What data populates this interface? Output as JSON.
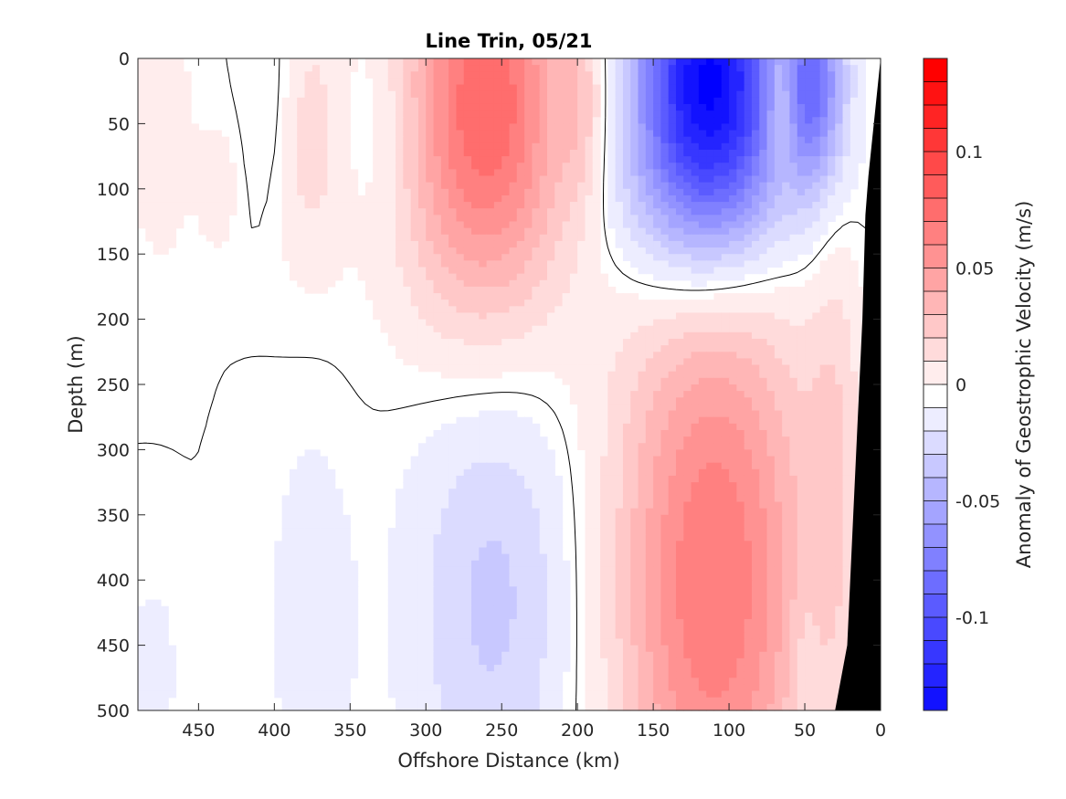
{
  "chart_data": {
    "type": "heatmap",
    "title": "Line Trin, 05/21",
    "xlabel": "Offshore Distance (km)",
    "ylabel": "Depth (m)",
    "colorbar_label": "Anomaly of Geostrophic Velocity (m/s)",
    "xlim": [
      490,
      0
    ],
    "ylim": [
      0,
      500
    ],
    "x_reversed": true,
    "y_reversed": true,
    "x_ticks": [
      450,
      400,
      350,
      300,
      250,
      200,
      150,
      100,
      50,
      0
    ],
    "y_ticks": [
      0,
      50,
      100,
      150,
      200,
      250,
      300,
      350,
      400,
      450,
      500
    ],
    "colorbar_range": [
      -0.14,
      0.14
    ],
    "colorbar_ticks": [
      0.1,
      0.05,
      0,
      -0.05,
      -0.1
    ],
    "colorbar_tick_labels": [
      "0.1",
      "0.05",
      "0",
      "-0.05",
      "-0.1"
    ],
    "contour_step": 0.01,
    "colormap": "blue-white-red",
    "features": [
      {
        "x": 475,
        "y": 60,
        "sx": 14,
        "sy": 60,
        "value": 0.015
      },
      {
        "x": 480,
        "y": 470,
        "sx": 10,
        "sy": 45,
        "value": -0.012
      },
      {
        "x": 438,
        "y": 100,
        "sx": 8,
        "sy": 30,
        "value": 0.015
      },
      {
        "x": 400,
        "y": 40,
        "sx": 12,
        "sy": 60,
        "value": -0.012
      },
      {
        "x": 378,
        "y": 60,
        "sx": 18,
        "sy": 70,
        "value": 0.022
      },
      {
        "x": 375,
        "y": 430,
        "sx": 18,
        "sy": 95,
        "value": -0.013
      },
      {
        "x": 330,
        "y": 50,
        "sx": 22,
        "sy": 55,
        "value": -0.012
      },
      {
        "x": 260,
        "y": 40,
        "sx": 40,
        "sy": 115,
        "value": 0.085
      },
      {
        "x": 255,
        "y": 410,
        "sx": 38,
        "sy": 135,
        "value": -0.028
      },
      {
        "x": 215,
        "y": 30,
        "sx": 8,
        "sy": 40,
        "value": -0.012
      },
      {
        "x": 198,
        "y": 40,
        "sx": 12,
        "sy": 55,
        "value": 0.02
      },
      {
        "x": 113,
        "y": 15,
        "sx": 34,
        "sy": 85,
        "value": -0.14
      },
      {
        "x": 120,
        "y": 110,
        "sx": 55,
        "sy": 55,
        "value": -0.02
      },
      {
        "x": 110,
        "y": 400,
        "sx": 45,
        "sy": 170,
        "value": 0.075
      },
      {
        "x": 65,
        "y": 25,
        "sx": 8,
        "sy": 45,
        "value": 0.04
      },
      {
        "x": 45,
        "y": 20,
        "sx": 15,
        "sy": 55,
        "value": -0.07
      },
      {
        "x": 50,
        "y": 480,
        "sx": 7,
        "sy": 60,
        "value": -0.012
      },
      {
        "x": 30,
        "y": 300,
        "sx": 12,
        "sy": 130,
        "value": 0.018
      }
    ],
    "bathymetry": [
      [
        0,
        0
      ],
      [
        8,
        90
      ],
      [
        10,
        120
      ],
      [
        12,
        200
      ],
      [
        18,
        350
      ],
      [
        22,
        450
      ],
      [
        30,
        500
      ],
      [
        0,
        500
      ]
    ],
    "bathymetry_color": "#000000"
  }
}
